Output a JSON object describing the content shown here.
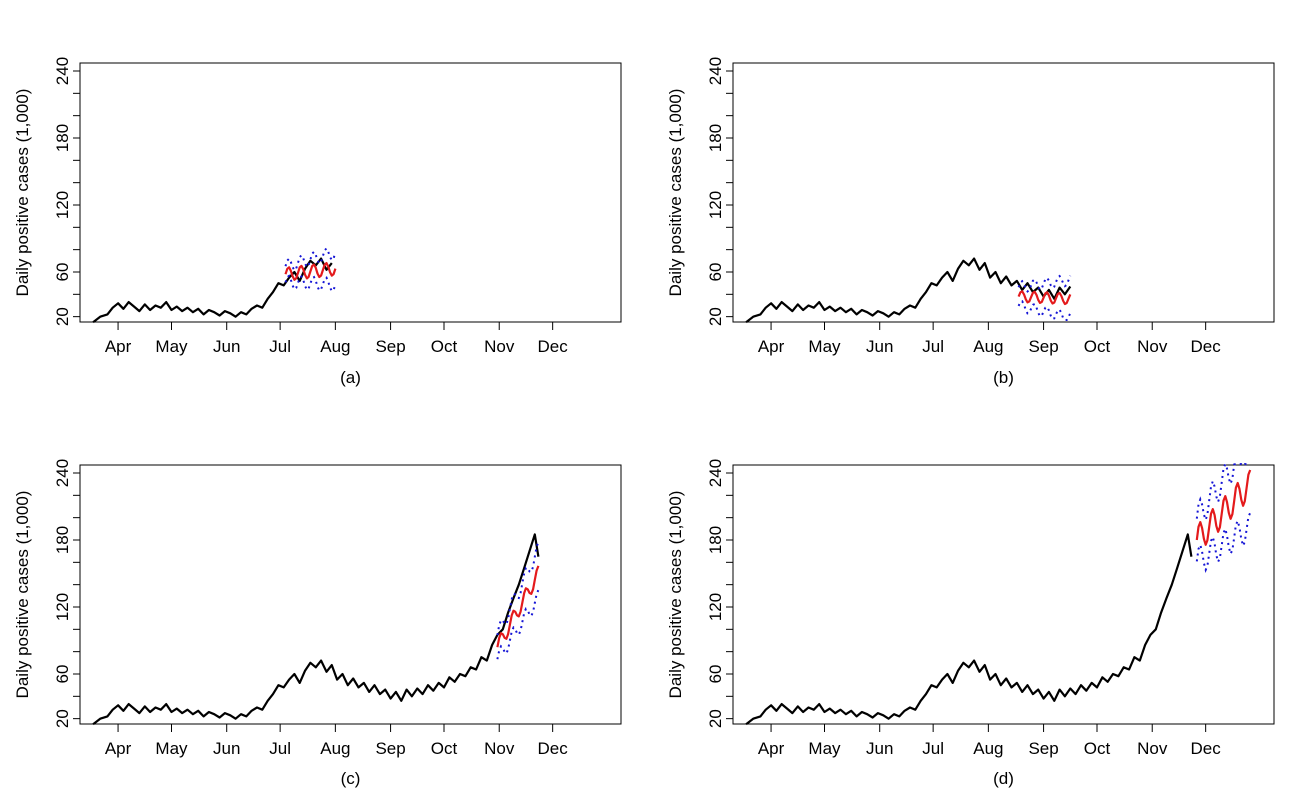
{
  "figure": {
    "colors": {
      "observed": "#000000",
      "forecast": "#e41a1c",
      "interval": "#1515d6"
    },
    "shared_y_ticks": [
      20,
      60,
      120,
      180,
      240
    ],
    "shared_x_ticks": [
      "Apr",
      "May",
      "Jun",
      "Jul",
      "Aug",
      "Sep",
      "Oct",
      "Nov",
      "Dec"
    ]
  },
  "chart_data": [
    {
      "type": "line",
      "caption": "(a)",
      "ylabel": "Daily positive cases (1,000)",
      "xlabel": "",
      "ylim": [
        20,
        240
      ],
      "xlim": [
        -12,
        285
      ],
      "yticks": [
        20,
        60,
        120,
        180,
        240
      ],
      "xtick_labels": [
        "Apr",
        "May",
        "Jun",
        "Jul",
        "Aug",
        "Sep",
        "Oct",
        "Nov",
        "Dec"
      ],
      "xtick_days": [
        6,
        36,
        67,
        97,
        128,
        159,
        189,
        220,
        250
      ],
      "observed_end_day": 128,
      "forecast": {
        "start_day": 100,
        "end_day": 128,
        "level": [
          58,
          63
        ],
        "amplitude": 6,
        "band": 12
      }
    },
    {
      "type": "line",
      "caption": "(b)",
      "ylabel": "Daily positive cases (1,000)",
      "xlabel": "",
      "ylim": [
        20,
        240
      ],
      "xlim": [
        -12,
        285
      ],
      "yticks": [
        20,
        60,
        120,
        180,
        240
      ],
      "xtick_labels": [
        "Apr",
        "May",
        "Jun",
        "Jul",
        "Aug",
        "Sep",
        "Oct",
        "Nov",
        "Dec"
      ],
      "xtick_days": [
        6,
        36,
        67,
        97,
        128,
        159,
        189,
        220,
        250
      ],
      "observed_end_day": 174,
      "forecast": {
        "start_day": 145,
        "end_day": 174,
        "level": [
          38,
          36
        ],
        "amplitude": 5,
        "band": 14
      }
    },
    {
      "type": "line",
      "caption": "(c)",
      "ylabel": "Daily positive cases (1,000)",
      "xlabel": "",
      "ylim": [
        20,
        240
      ],
      "xlim": [
        -12,
        285
      ],
      "yticks": [
        20,
        60,
        120,
        180,
        240
      ],
      "xtick_labels": [
        "Apr",
        "May",
        "Jun",
        "Jul",
        "Aug",
        "Sep",
        "Oct",
        "Nov",
        "Dec"
      ],
      "xtick_days": [
        6,
        36,
        67,
        97,
        128,
        159,
        189,
        220,
        250
      ],
      "observed_end_day": 242,
      "forecast": {
        "start_day": 219,
        "end_day": 242,
        "level": [
          84,
          150
        ],
        "amplitude": 7,
        "band": 18
      }
    },
    {
      "type": "line",
      "caption": "(d)",
      "ylabel": "Daily positive cases (1,000)",
      "xlabel": "",
      "ylim": [
        20,
        240
      ],
      "xlim": [
        -12,
        285
      ],
      "yticks": [
        20,
        60,
        120,
        180,
        240
      ],
      "xtick_labels": [
        "Apr",
        "May",
        "Jun",
        "Jul",
        "Aug",
        "Sep",
        "Oct",
        "Nov",
        "Dec"
      ],
      "xtick_days": [
        6,
        36,
        67,
        97,
        128,
        159,
        189,
        220,
        250
      ],
      "observed_end_day": 242,
      "forecast": {
        "start_day": 245,
        "end_day": 275,
        "level": [
          180,
          230
        ],
        "amplitude": 13,
        "band": 32
      }
    }
  ],
  "observed_series_days": [
    -8,
    -4,
    0,
    3,
    6,
    9,
    12,
    15,
    18,
    21,
    24,
    27,
    30,
    33,
    36,
    39,
    42,
    45,
    48,
    51,
    54,
    57,
    60,
    63,
    66,
    69,
    72,
    75,
    78,
    81,
    84,
    87,
    90,
    93,
    96,
    99,
    102,
    105,
    108,
    111,
    114,
    117,
    120,
    123,
    126,
    129,
    132,
    135,
    138,
    141,
    144,
    147,
    150,
    153,
    156,
    159,
    162,
    165,
    168,
    171,
    174,
    177,
    180,
    183,
    186,
    189,
    192,
    195,
    198,
    201,
    204,
    207,
    210,
    213,
    216,
    219,
    222,
    225,
    228,
    231,
    234,
    237,
    240,
    242
  ],
  "observed_series_values": [
    15,
    20,
    22,
    28,
    32,
    27,
    33,
    29,
    25,
    31,
    26,
    30,
    28,
    33,
    26,
    29,
    25,
    28,
    24,
    27,
    22,
    26,
    24,
    21,
    25,
    23,
    20,
    24,
    22,
    27,
    30,
    28,
    36,
    42,
    50,
    48,
    55,
    60,
    52,
    63,
    70,
    66,
    72,
    62,
    68,
    55,
    60,
    50,
    56,
    48,
    52,
    44,
    50,
    42,
    46,
    38,
    44,
    36,
    46,
    40,
    47,
    42,
    50,
    45,
    52,
    48,
    57,
    53,
    60,
    58,
    66,
    64,
    75,
    72,
    86,
    95,
    100,
    115,
    128,
    140,
    155,
    170,
    185,
    165
  ]
}
